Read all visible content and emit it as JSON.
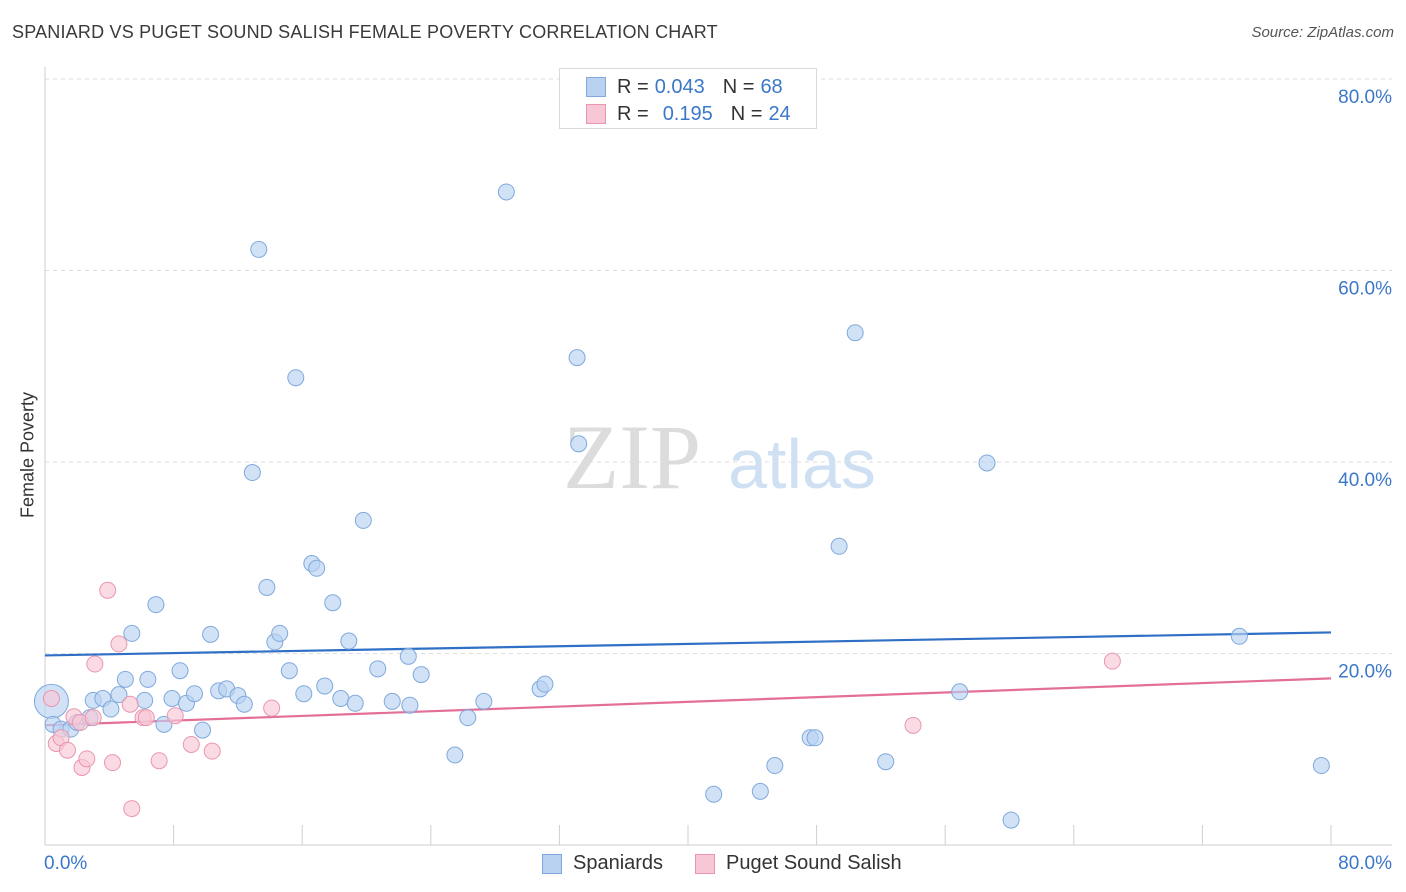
{
  "title": "SPANIARD VS PUGET SOUND SALISH FEMALE POVERTY CORRELATION CHART",
  "source": "Source: ZipAtlas.com",
  "watermark": {
    "zip": "ZIP",
    "atlas": "atlas"
  },
  "legend": {
    "rows": [
      {
        "r_label": "R = ",
        "r_value": "0.043",
        "n_label": "N = ",
        "n_value": "68"
      },
      {
        "r_label": "R = ",
        "r_value": "0.195",
        "n_label": "N = ",
        "n_value": "24"
      }
    ]
  },
  "bottom_legend": [
    "Spaniards",
    "Puget Sound Salish"
  ],
  "colors": {
    "blue_fill": "#b9d2f2",
    "blue_stroke": "#7fa9dc",
    "blue_line": "#2f6fc6",
    "pink_fill": "#f8c7d6",
    "pink_stroke": "#e996b0",
    "pink_line": "#e36f99",
    "axis_label": "#3b78c8",
    "grid": "#dddddd"
  },
  "chart_data": {
    "type": "scatter",
    "title": "SPANIARD VS PUGET SOUND SALISH FEMALE POVERTY CORRELATION CHART",
    "xlabel": "",
    "ylabel": "Female Poverty",
    "xlim": [
      0,
      80
    ],
    "ylim": [
      0,
      80
    ],
    "x_tick_labels": [
      "0.0%",
      "80.0%"
    ],
    "y_tick_labels": [
      "20.0%",
      "40.0%",
      "60.0%",
      "80.0%"
    ],
    "y_ticks": [
      20,
      40,
      60,
      80
    ],
    "x_ticks": [
      0,
      8,
      16,
      24,
      32,
      40,
      48,
      56,
      64,
      72,
      80
    ],
    "series": [
      {
        "name": "Spaniards",
        "r": 0.043,
        "n": 68,
        "trend": {
          "x": [
            0,
            80
          ],
          "y": [
            19.8,
            22.2
          ]
        },
        "points": [
          [
            0.4,
            15.0
          ],
          [
            0.5,
            12.6
          ],
          [
            1.0,
            12.1
          ],
          [
            1.6,
            12.1
          ],
          [
            2.0,
            12.8
          ],
          [
            2.8,
            13.3
          ],
          [
            3.0,
            15.1
          ],
          [
            3.6,
            15.3
          ],
          [
            4.1,
            14.2
          ],
          [
            4.6,
            15.7
          ],
          [
            5.0,
            17.3
          ],
          [
            5.4,
            22.1
          ],
          [
            6.2,
            15.1
          ],
          [
            6.4,
            17.3
          ],
          [
            6.9,
            25.1
          ],
          [
            7.4,
            12.6
          ],
          [
            7.9,
            15.3
          ],
          [
            8.4,
            18.2
          ],
          [
            8.8,
            14.8
          ],
          [
            9.3,
            15.8
          ],
          [
            9.8,
            12.0
          ],
          [
            10.3,
            22.0
          ],
          [
            10.8,
            16.1
          ],
          [
            11.3,
            16.3
          ],
          [
            12.0,
            15.6
          ],
          [
            12.4,
            14.7
          ],
          [
            12.9,
            38.9
          ],
          [
            13.3,
            62.2
          ],
          [
            13.8,
            26.9
          ],
          [
            14.3,
            21.2
          ],
          [
            14.6,
            22.1
          ],
          [
            15.2,
            18.2
          ],
          [
            15.6,
            48.8
          ],
          [
            16.1,
            15.8
          ],
          [
            16.6,
            29.4
          ],
          [
            16.9,
            28.9
          ],
          [
            17.4,
            16.6
          ],
          [
            17.9,
            25.3
          ],
          [
            18.4,
            15.3
          ],
          [
            18.9,
            21.3
          ],
          [
            19.3,
            14.8
          ],
          [
            19.8,
            33.9
          ],
          [
            20.7,
            18.4
          ],
          [
            21.6,
            15.0
          ],
          [
            22.6,
            19.7
          ],
          [
            22.7,
            14.6
          ],
          [
            23.4,
            17.8
          ],
          [
            25.5,
            9.4
          ],
          [
            26.3,
            13.3
          ],
          [
            27.3,
            15.0
          ],
          [
            28.7,
            68.2
          ],
          [
            30.8,
            16.3
          ],
          [
            31.1,
            16.8
          ],
          [
            33.1,
            50.9
          ],
          [
            33.2,
            41.9
          ],
          [
            41.6,
            5.3
          ],
          [
            44.5,
            5.6
          ],
          [
            45.4,
            8.3
          ],
          [
            47.6,
            11.2
          ],
          [
            47.9,
            11.2
          ],
          [
            49.4,
            31.2
          ],
          [
            50.4,
            53.5
          ],
          [
            52.3,
            8.7
          ],
          [
            56.9,
            16.0
          ],
          [
            58.6,
            39.9
          ],
          [
            60.1,
            2.6
          ],
          [
            74.3,
            21.8
          ],
          [
            79.4,
            8.3
          ]
        ]
      },
      {
        "name": "Puget Sound Salish",
        "r": 0.195,
        "n": 24,
        "trend": {
          "x": [
            0,
            80
          ],
          "y": [
            12.5,
            17.4
          ]
        },
        "points": [
          [
            0.4,
            15.3
          ],
          [
            0.7,
            10.6
          ],
          [
            1.0,
            11.2
          ],
          [
            1.4,
            9.9
          ],
          [
            1.8,
            13.4
          ],
          [
            2.2,
            12.8
          ],
          [
            2.3,
            8.1
          ],
          [
            2.6,
            9.0
          ],
          [
            3.0,
            13.3
          ],
          [
            3.1,
            18.9
          ],
          [
            3.9,
            26.6
          ],
          [
            4.2,
            8.6
          ],
          [
            4.6,
            21.0
          ],
          [
            5.3,
            14.7
          ],
          [
            6.1,
            13.3
          ],
          [
            6.3,
            13.3
          ],
          [
            7.1,
            8.8
          ],
          [
            8.1,
            13.5
          ],
          [
            9.1,
            10.5
          ],
          [
            10.4,
            9.8
          ],
          [
            14.1,
            14.3
          ],
          [
            5.4,
            3.8
          ],
          [
            54.0,
            12.5
          ],
          [
            66.4,
            19.2
          ]
        ]
      }
    ]
  }
}
